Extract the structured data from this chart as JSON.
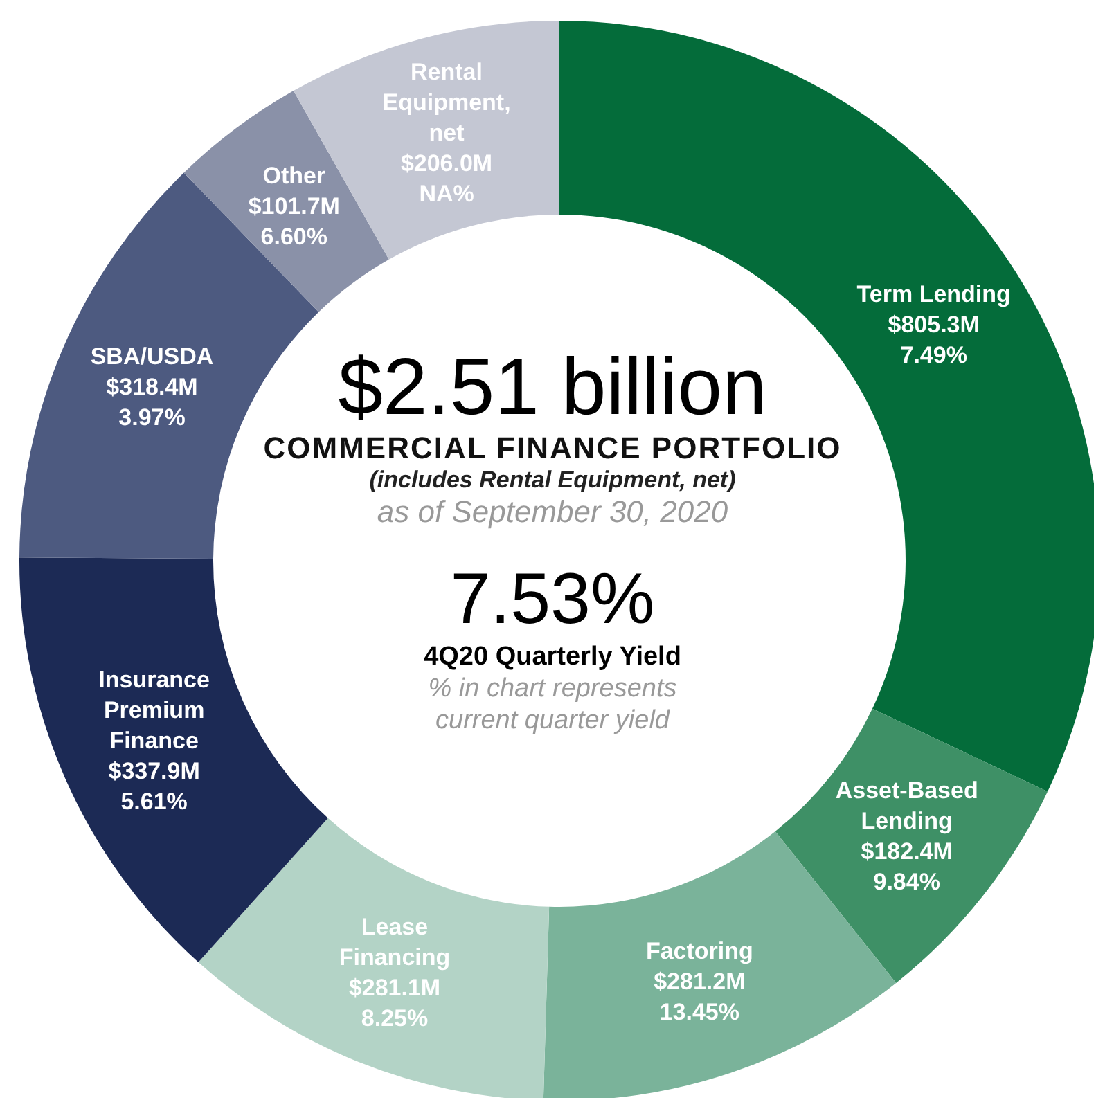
{
  "chart_data": {
    "type": "donut",
    "title": "$2.51 billion",
    "subtitle": "COMMERCIAL FINANCE PORTFOLIO",
    "annotations": [
      "(includes Rental Equipment, net)",
      "as of September 30, 2020",
      "7.53%",
      "4Q20 Quarterly Yield",
      "% in chart represents current quarter yield",
      {
        "text": "7.49%",
        "x": "Term Lending"
      },
      {
        "text": "9.84%",
        "x": "Asset-Based Lending"
      },
      {
        "text": "13.45%",
        "x": "Factoring"
      },
      {
        "text": "8.25%",
        "x": "Lease Financing"
      },
      {
        "text": "5.61%",
        "x": "Insurance Premium Finance"
      },
      {
        "text": "3.97%",
        "x": "SBA/USDA"
      },
      {
        "text": "6.60%",
        "x": "Other"
      },
      {
        "text": "NA%",
        "x": "Rental Equipment, net"
      }
    ],
    "categories": [
      "Term Lending",
      "Asset-Based Lending",
      "Factoring",
      "Lease Financing",
      "Insurance Premium Finance",
      "SBA/USDA",
      "Other",
      "Rental Equipment, net"
    ],
    "values": [
      805.3,
      182.4,
      281.2,
      281.1,
      337.9,
      318.4,
      101.7,
      206.0
    ],
    "value_labels": [
      "$805.3M",
      "$182.4M",
      "$281.2M",
      "$281.1M",
      "$337.9M",
      "$318.4M",
      "$101.7M",
      "$206.0M"
    ],
    "colors": [
      "#046c3a",
      "#3e9066",
      "#7ab39a",
      "#b3d3c6",
      "#1c2a55",
      "#4d5a80",
      "#8a91a8",
      "#c4c7d3"
    ]
  }
}
